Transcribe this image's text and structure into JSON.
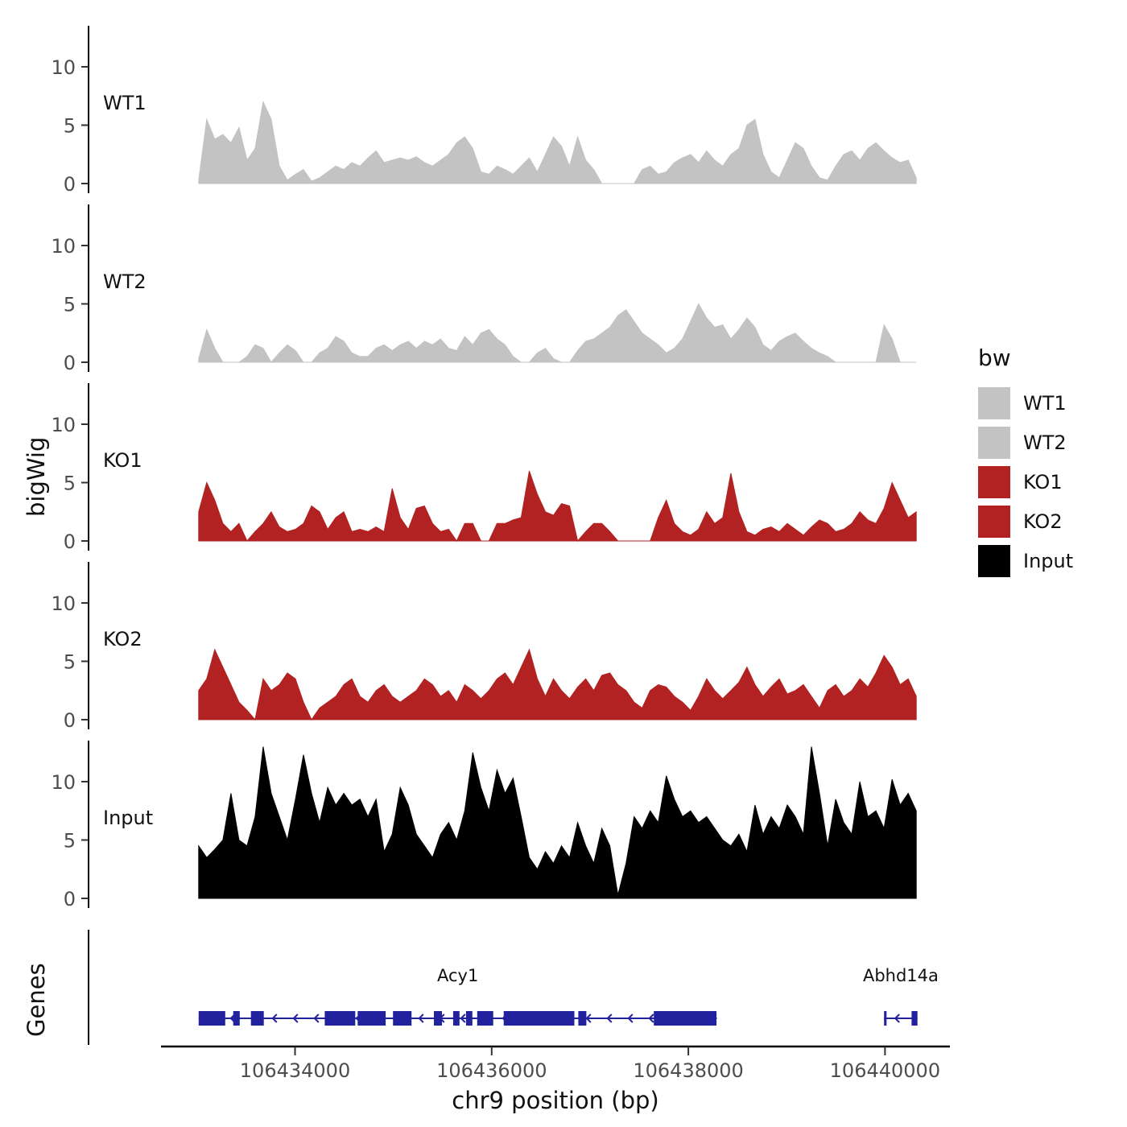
{
  "figure": {
    "y_axis_title": "bigWig",
    "genes_axis_title": "Genes",
    "x_axis_title": "chr9 position (bp)",
    "legend": {
      "title": "bw",
      "items": [
        {
          "label": "WT1",
          "color": "#c3c3c3"
        },
        {
          "label": "WT2",
          "color": "#c3c3c3"
        },
        {
          "label": "KO1",
          "color": "#b22222"
        },
        {
          "label": "KO2",
          "color": "#b22222"
        },
        {
          "label": "Input",
          "color": "#000000"
        }
      ]
    }
  },
  "chart_data": {
    "type": "area",
    "title": "",
    "xlabel": "chr9 position (bp)",
    "ylabel": "bigWig",
    "x_domain": [
      106431900,
      106440660
    ],
    "x_ticks": [
      106434000,
      106436000,
      106438000,
      106440000
    ],
    "x_start": 106433020,
    "x_step": 82,
    "y_ticks": [
      0,
      5,
      10
    ],
    "y_max": 13.5,
    "gene_color": "#22229e",
    "tracks": [
      {
        "name": "WT1",
        "color": "#c3c3c3",
        "values": [
          0.3,
          5.5,
          3.8,
          4.2,
          3.5,
          4.8,
          2,
          3,
          7,
          5.5,
          1.5,
          0.3,
          0.8,
          1.2,
          0.2,
          0.5,
          1,
          1.5,
          1.2,
          1.8,
          1.5,
          2.2,
          2.8,
          1.8,
          2,
          2.2,
          2,
          2.3,
          1.8,
          1.5,
          2,
          2.5,
          3.5,
          4,
          3,
          1,
          0.8,
          1.5,
          1.2,
          0.8,
          1.5,
          2.2,
          1,
          2.5,
          4,
          3.2,
          1.5,
          4,
          2,
          1.2,
          0,
          0,
          0,
          0,
          0,
          1.2,
          1.5,
          0.8,
          1,
          1.8,
          2.2,
          2.5,
          1.8,
          2.8,
          2,
          1.5,
          2.5,
          3,
          5,
          5.5,
          2.5,
          1,
          0.5,
          2,
          3.5,
          3,
          1.5,
          0.5,
          0.3,
          1.5,
          2.5,
          2.8,
          2,
          3,
          3.5,
          2.8,
          2.2,
          1.8,
          2,
          0.5
        ]
      },
      {
        "name": "WT2",
        "color": "#c3c3c3",
        "values": [
          0.3,
          2.8,
          1.2,
          0,
          0,
          0,
          0.5,
          1.5,
          1.2,
          0,
          0.8,
          1.5,
          1,
          0,
          0,
          0.8,
          1.2,
          2.2,
          1.8,
          0.8,
          0.5,
          0.5,
          1.2,
          1.5,
          1,
          1.5,
          1.8,
          1.2,
          1.8,
          1.5,
          2,
          1.2,
          1,
          2.2,
          1.5,
          2.5,
          2.8,
          2,
          1.5,
          0.5,
          0,
          0,
          0.8,
          1.2,
          0.3,
          0,
          0,
          1,
          1.8,
          2,
          2.5,
          3,
          4,
          4.5,
          3.5,
          2.5,
          2,
          1.5,
          0.8,
          1.2,
          2,
          3.5,
          5,
          3.8,
          3,
          3.2,
          2,
          2.8,
          3.8,
          3,
          1.5,
          1,
          1.8,
          2.2,
          2.5,
          1.8,
          1.2,
          0.8,
          0.5,
          0,
          0,
          0,
          0,
          0,
          0,
          3.2,
          2,
          0,
          0,
          0
        ]
      },
      {
        "name": "KO1",
        "color": "#b22222",
        "values": [
          2.5,
          5,
          3.5,
          1.5,
          0.8,
          1.5,
          0,
          0.8,
          1.5,
          2.5,
          1.2,
          0.8,
          1,
          1.5,
          3,
          2.5,
          1,
          2,
          2.5,
          0.8,
          1,
          0.8,
          1.2,
          0.8,
          4.5,
          2,
          1,
          2.8,
          3,
          1.5,
          0.8,
          1,
          0,
          1.5,
          1.5,
          0,
          0,
          1.5,
          1.5,
          1.8,
          2,
          6,
          4,
          2.5,
          2.2,
          3.2,
          3,
          0,
          0.8,
          1.5,
          1.5,
          0.8,
          0,
          0,
          0,
          0,
          0,
          2,
          3.5,
          1.5,
          0.8,
          0.5,
          1,
          2.5,
          1.5,
          2,
          5.8,
          2.5,
          0.8,
          0.5,
          1,
          1.2,
          0.8,
          1.5,
          1,
          0.5,
          1.2,
          1.8,
          1.5,
          0.8,
          1,
          1.5,
          2.5,
          1.8,
          1.5,
          2.8,
          5,
          3.5,
          2,
          2.5
        ]
      },
      {
        "name": "KO2",
        "color": "#b22222",
        "values": [
          2.5,
          3.5,
          6,
          4.5,
          3,
          1.5,
          0.8,
          0,
          3.5,
          2.5,
          3,
          4,
          3.5,
          1.5,
          0,
          1,
          1.5,
          2,
          3,
          3.5,
          2,
          1.5,
          2.5,
          3,
          2,
          1.5,
          2,
          2.5,
          3.5,
          3,
          2,
          2.5,
          1.5,
          3,
          2.5,
          1.8,
          2.5,
          3.5,
          4,
          3,
          4.5,
          6,
          3.5,
          2,
          3.5,
          2.5,
          1.8,
          2.8,
          3.5,
          2.5,
          3.8,
          4,
          3,
          2.5,
          1.5,
          1,
          2.5,
          3,
          2.8,
          2,
          1.5,
          0.8,
          2,
          3.5,
          2.5,
          1.8,
          2.5,
          3.2,
          4.5,
          3,
          2,
          2.8,
          3.5,
          2.2,
          2.5,
          3,
          2,
          1,
          2.5,
          3,
          2,
          2.5,
          3.5,
          2.8,
          4,
          5.5,
          4.5,
          3,
          3.5,
          2
        ]
      },
      {
        "name": "Input",
        "color": "#000000",
        "values": [
          4.5,
          3.5,
          4.2,
          5,
          9,
          5,
          4.5,
          7,
          13,
          9,
          7,
          5,
          8.5,
          12.3,
          9,
          6.5,
          9.5,
          8,
          9,
          8,
          8.5,
          7,
          8.5,
          4,
          5.5,
          9.5,
          8,
          5.5,
          4.5,
          3.5,
          5.5,
          6.5,
          5,
          7.5,
          12.5,
          9.5,
          7.5,
          11,
          9,
          10.3,
          7,
          3.5,
          2.5,
          4,
          3,
          4.5,
          3.5,
          6.5,
          4.5,
          3,
          6,
          4.5,
          0.3,
          3,
          7,
          6,
          7.5,
          6.5,
          10.5,
          8.5,
          7,
          7.5,
          6.5,
          7,
          6,
          5,
          4.5,
          5.5,
          4,
          8,
          5.5,
          7,
          6,
          8,
          7,
          5.5,
          13,
          9,
          4.5,
          8.5,
          6.5,
          5.5,
          10,
          7,
          7.5,
          6,
          10.2,
          8,
          9,
          7.5
        ]
      }
    ],
    "genes": [
      {
        "name": "Acy1",
        "start": 106433020,
        "end": 106438290,
        "strand": "-",
        "exons": [
          [
            106433020,
            106433290
          ],
          [
            106433371,
            106433437
          ],
          [
            106433551,
            106433682
          ],
          [
            106434302,
            106434612
          ],
          [
            106434637,
            106434922
          ],
          [
            106434996,
            106435184
          ],
          [
            106435412,
            106435494
          ],
          [
            106435608,
            106435673
          ],
          [
            106435739,
            106435804
          ],
          [
            106435853,
            106436016
          ],
          [
            106436122,
            106436841
          ],
          [
            106436881,
            106436963
          ],
          [
            106437649,
            106438286
          ]
        ]
      },
      {
        "name": "Abhd14a",
        "start": 106439990,
        "end": 106440330,
        "strand": "-",
        "exons": [
          [
            106439990,
            106440015
          ],
          [
            106440270,
            106440330
          ]
        ]
      }
    ]
  }
}
